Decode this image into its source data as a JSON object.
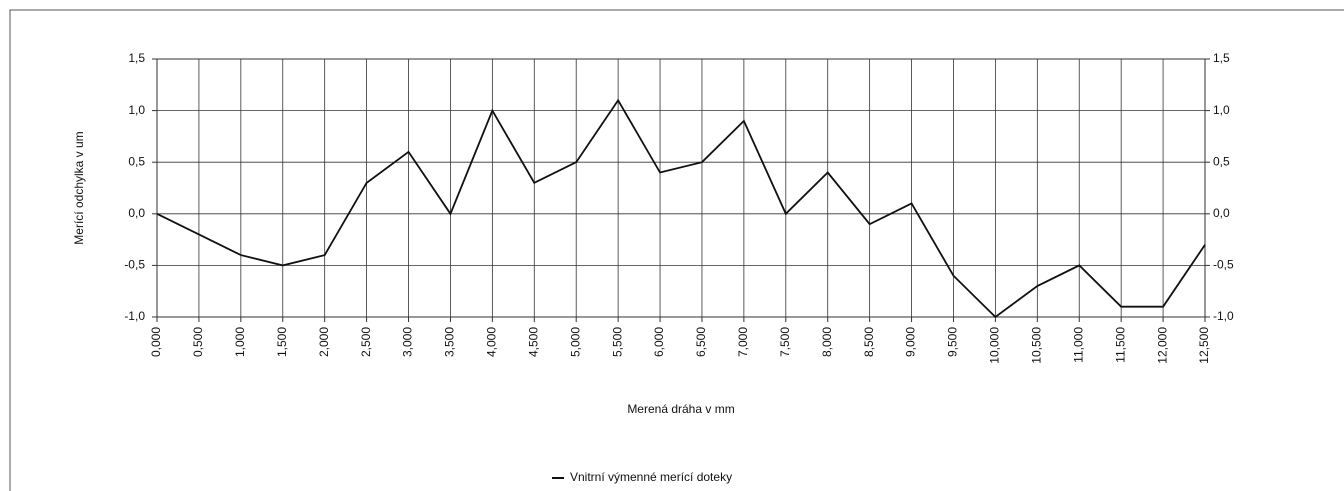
{
  "chart_data": {
    "type": "line",
    "x_label": "Merená dráha v mm",
    "y_label": "Merící odchylka v um",
    "x": [
      0,
      0.5,
      1,
      1.5,
      2,
      2.5,
      3,
      3.5,
      4,
      4.5,
      5,
      5.5,
      6,
      6.5,
      7,
      7.5,
      8,
      8.5,
      9,
      9.5,
      10,
      10.5,
      11,
      11.5,
      12,
      12.5
    ],
    "series": [
      {
        "name": "Vnitrní výmenné merící doteky",
        "color": "#111111",
        "values": [
          0,
          -0.2,
          -0.4,
          -0.5,
          -0.4,
          0.3,
          0.6,
          0,
          1,
          0.3,
          0.5,
          1.1,
          0.4,
          0.5,
          0.9,
          0,
          0.4,
          -0.1,
          0.1,
          -0.6,
          -1,
          -0.7,
          -0.5,
          -0.9,
          -0.9,
          -0.3
        ]
      }
    ],
    "xlim": [
      0,
      12.5
    ],
    "xticks": [
      {
        "value": 0,
        "label": "0,000"
      },
      {
        "value": 0.5,
        "label": "0,500"
      },
      {
        "value": 1,
        "label": "1,000"
      },
      {
        "value": 1.5,
        "label": "1,500"
      },
      {
        "value": 2,
        "label": "2,000"
      },
      {
        "value": 2.5,
        "label": "2,500"
      },
      {
        "value": 3,
        "label": "3,000"
      },
      {
        "value": 3.5,
        "label": "3,500"
      },
      {
        "value": 4,
        "label": "4,000"
      },
      {
        "value": 4.5,
        "label": "4,500"
      },
      {
        "value": 5,
        "label": "5,000"
      },
      {
        "value": 5.5,
        "label": "5,500"
      },
      {
        "value": 6,
        "label": "6,000"
      },
      {
        "value": 6.5,
        "label": "6,500"
      },
      {
        "value": 7,
        "label": "7,000"
      },
      {
        "value": 7.5,
        "label": "7,500"
      },
      {
        "value": 8,
        "label": "8,000"
      },
      {
        "value": 8.5,
        "label": "8,500"
      },
      {
        "value": 9,
        "label": "9,000"
      },
      {
        "value": 9.5,
        "label": "9,500"
      },
      {
        "value": 10,
        "label": "10,000"
      },
      {
        "value": 10.5,
        "label": "10,500"
      },
      {
        "value": 11,
        "label": "11,000"
      },
      {
        "value": 11.5,
        "label": "11,500"
      },
      {
        "value": 12,
        "label": "12,000"
      },
      {
        "value": 12.5,
        "label": "12,500"
      }
    ],
    "ylim": [
      -1,
      1.5
    ],
    "yticks": [
      {
        "value": -1,
        "label": "-1,0"
      },
      {
        "value": -0.5,
        "label": "-0,5"
      },
      {
        "value": 0,
        "label": "0,0"
      },
      {
        "value": 0.5,
        "label": "0,5"
      },
      {
        "value": 1,
        "label": "1,0"
      },
      {
        "value": 1.5,
        "label": "1,5"
      }
    ],
    "y2lim": [
      -1,
      1.5
    ],
    "y2ticks": [
      {
        "value": -1,
        "label": "-1,0"
      },
      {
        "value": -0.5,
        "label": "-0,5"
      },
      {
        "value": 0,
        "label": "0,0"
      },
      {
        "value": 0.5,
        "label": "0,5"
      },
      {
        "value": 1,
        "label": "1,0"
      },
      {
        "value": 1.5,
        "label": "1,5"
      }
    ],
    "grid": true,
    "legend": "bottom"
  }
}
